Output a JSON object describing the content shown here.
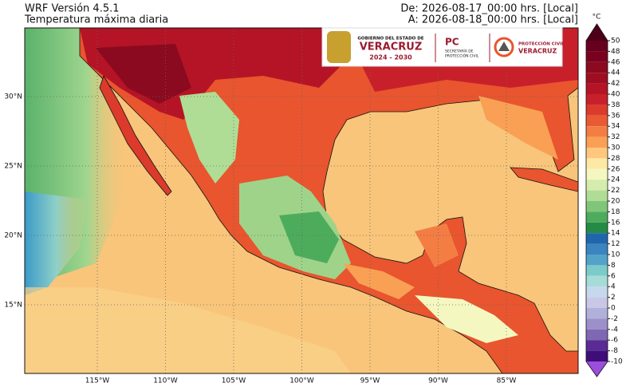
{
  "header": {
    "model": "WRF Versión 4.5.1",
    "variable": "Temperatura máxima diaria",
    "from": "De: 2026-08-17_00:00 hrs. [Local]",
    "to": "A: 2026-08-18_00:00 hrs. [Local]"
  },
  "map": {
    "lat_ticks": [
      {
        "value": 30,
        "label": "30°N"
      },
      {
        "value": 25,
        "label": "25°N"
      },
      {
        "value": 20,
        "label": "20°N"
      },
      {
        "value": 15,
        "label": "15°N"
      }
    ],
    "lon_ticks": [
      {
        "value": -115,
        "label": "115°W"
      },
      {
        "value": -110,
        "label": "110°W"
      },
      {
        "value": -105,
        "label": "105°W"
      },
      {
        "value": -100,
        "label": "100°W"
      },
      {
        "value": -95,
        "label": "95°W"
      },
      {
        "value": -90,
        "label": "90°W"
      },
      {
        "value": -85,
        "label": "85°W"
      }
    ]
  },
  "logos": {
    "gov_line": "GOBIERNO DEL ESTADO DE",
    "gov_name": "VERACRUZ",
    "gov_years": "2024 - 2030",
    "pc": "PC",
    "pc_sub1": "SECRETARÍA DE",
    "pc_sub2": "PROTECCIÓN CIVIL",
    "pcv_line": "PROTECCIÓN CIVIL",
    "pcv_name": "VERACRUZ"
  },
  "colorbar": {
    "unit": "°C",
    "ticks": [
      50,
      48,
      46,
      44,
      42,
      40,
      38,
      36,
      34,
      32,
      30,
      28,
      26,
      24,
      22,
      20,
      18,
      16,
      14,
      12,
      10,
      8,
      6,
      4,
      2,
      0,
      -2,
      -4,
      -6,
      -8,
      -10
    ],
    "colors": [
      "#67001f",
      "#7a0020",
      "#8b0a1f",
      "#9e0d22",
      "#b51426",
      "#c8202a",
      "#dc3b2c",
      "#ea5a32",
      "#f47d43",
      "#f9a055",
      "#fdc77d",
      "#fee9a4",
      "#f4f8c0",
      "#d5ecac",
      "#b0dd95",
      "#7fc67a",
      "#4dac5c",
      "#238b45",
      "#2166ac",
      "#3a84c0",
      "#53a3c8",
      "#7ccbcb",
      "#a5dcd8",
      "#c6d8ec",
      "#c8c8e6",
      "#b0b0da",
      "#9c8fca",
      "#7e68b3",
      "#5a2b94",
      "#3f0d7a"
    ],
    "over": "#4d0017",
    "under": "#9b4ddb"
  }
}
